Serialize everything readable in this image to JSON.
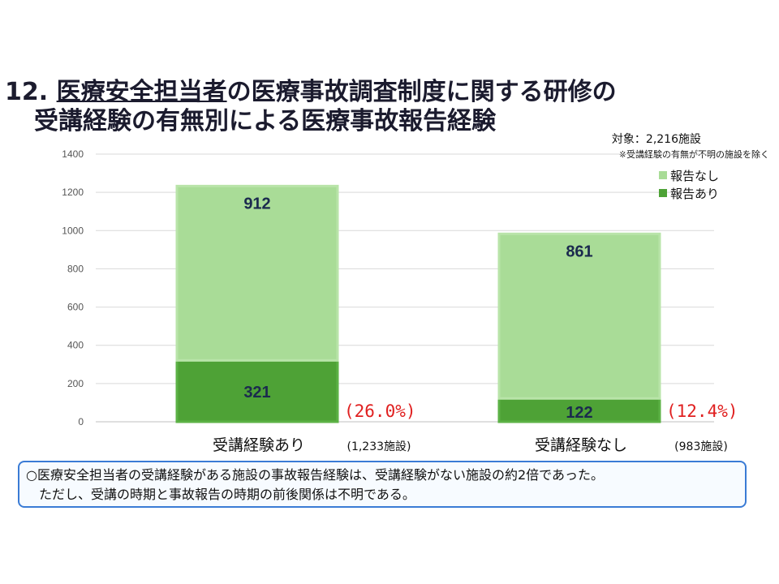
{
  "title": {
    "number": "12.",
    "underlined": "医療安全担当者",
    "rest_line1": "の医療事故調査制度に関する研修の",
    "line2": "受講経験の有無別による医療事故報告経験"
  },
  "subtitle": "対象：2,216施設",
  "note": "※受講経験の有無が不明の施設を除く",
  "colors": {
    "report_none": "#a9dc97",
    "report_yes": "#4ea236",
    "value_text": "#1b2a4e",
    "percent_text": "#e02020"
  },
  "chart_data": {
    "type": "bar",
    "stacked": true,
    "categories": [
      "受講経験あり",
      "受講経験なし"
    ],
    "category_counts": [
      "(1,233施設)",
      "(983施設)"
    ],
    "series": [
      {
        "name": "報告あり",
        "values": [
          321,
          122
        ]
      },
      {
        "name": "報告なし",
        "values": [
          912,
          861
        ]
      }
    ],
    "percent_labels": [
      "(26.0%)",
      "(12.4%)"
    ],
    "ylim": [
      0,
      1400
    ],
    "yticks": [
      0,
      200,
      400,
      600,
      800,
      1000,
      1200,
      1400
    ],
    "grid": true,
    "legend": "top-right"
  },
  "callout": {
    "line1": "○医療安全担当者の受講経験がある施設の事故報告経験は、受講経験がない施設の約2倍であった。",
    "line2": "ただし、受講の時期と事故報告の時期の前後関係は不明である。"
  }
}
